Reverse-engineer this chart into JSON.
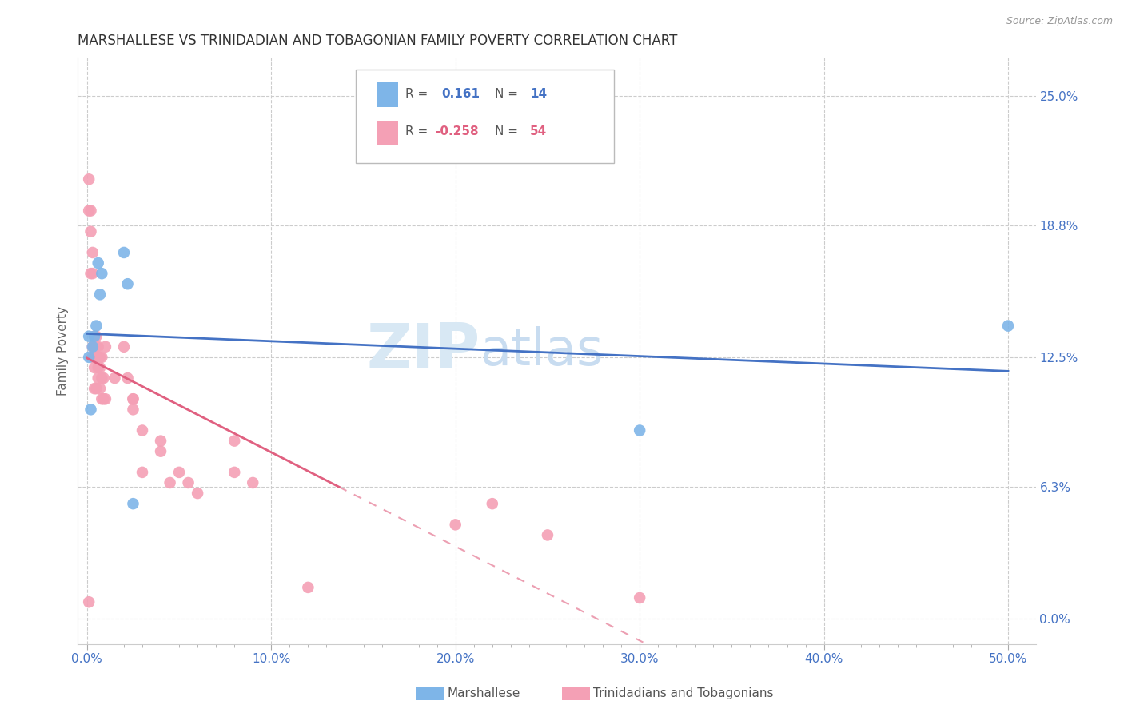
{
  "title": "MARSHALLESE VS TRINIDADIAN AND TOBAGONIAN FAMILY POVERTY CORRELATION CHART",
  "source": "Source: ZipAtlas.com",
  "ylabel": "Family Poverty",
  "xlabel_ticks": [
    "0.0%",
    "",
    "",
    "",
    "",
    "",
    "",
    "",
    "",
    "",
    "10.0%",
    "",
    "",
    "",
    "",
    "",
    "",
    "",
    "",
    "",
    "20.0%",
    "",
    "",
    "",
    "",
    "",
    "",
    "",
    "",
    "",
    "30.0%",
    "",
    "",
    "",
    "",
    "",
    "",
    "",
    "",
    "",
    "40.0%",
    "",
    "",
    "",
    "",
    "",
    "",
    "",
    "",
    "",
    "50.0%"
  ],
  "xlabel_vals": [
    0.0,
    0.01,
    0.02,
    0.03,
    0.04,
    0.05,
    0.06,
    0.07,
    0.08,
    0.09,
    0.1,
    0.11,
    0.12,
    0.13,
    0.14,
    0.15,
    0.16,
    0.17,
    0.18,
    0.19,
    0.2,
    0.21,
    0.22,
    0.23,
    0.24,
    0.25,
    0.26,
    0.27,
    0.28,
    0.29,
    0.3,
    0.31,
    0.32,
    0.33,
    0.34,
    0.35,
    0.36,
    0.37,
    0.38,
    0.39,
    0.4,
    0.41,
    0.42,
    0.43,
    0.44,
    0.45,
    0.46,
    0.47,
    0.48,
    0.49,
    0.5
  ],
  "xlabel_major_ticks": [
    0.0,
    0.1,
    0.2,
    0.3,
    0.4,
    0.5
  ],
  "xlabel_major_labels": [
    "0.0%",
    "10.0%",
    "20.0%",
    "30.0%",
    "40.0%",
    "50.0%"
  ],
  "ylabel_ticks": [
    "0.0%",
    "6.3%",
    "12.5%",
    "18.8%",
    "25.0%"
  ],
  "ylabel_vals": [
    0.0,
    0.063,
    0.125,
    0.188,
    0.25
  ],
  "xlim": [
    -0.005,
    0.515
  ],
  "ylim": [
    -0.012,
    0.268
  ],
  "marshallese_R": "0.161",
  "marshallese_N": "14",
  "trinidadian_R": "-0.258",
  "trinidadian_N": "54",
  "watermark_zip": "ZIP",
  "watermark_atlas": "atlas",
  "blue_color": "#7EB5E8",
  "pink_color": "#F4A0B5",
  "blue_line_color": "#4472C4",
  "pink_line_color": "#E06080",
  "marshallese_x": [
    0.001,
    0.001,
    0.002,
    0.003,
    0.004,
    0.005,
    0.006,
    0.007,
    0.008,
    0.02,
    0.022,
    0.025,
    0.5,
    0.3
  ],
  "marshallese_y": [
    0.135,
    0.125,
    0.1,
    0.13,
    0.135,
    0.14,
    0.17,
    0.155,
    0.165,
    0.175,
    0.16,
    0.055,
    0.14,
    0.09
  ],
  "trinidadian_x": [
    0.001,
    0.001,
    0.002,
    0.002,
    0.002,
    0.003,
    0.003,
    0.003,
    0.003,
    0.004,
    0.004,
    0.004,
    0.004,
    0.004,
    0.005,
    0.005,
    0.005,
    0.005,
    0.006,
    0.006,
    0.006,
    0.007,
    0.007,
    0.007,
    0.008,
    0.008,
    0.008,
    0.009,
    0.009,
    0.01,
    0.01,
    0.015,
    0.02,
    0.022,
    0.025,
    0.025,
    0.025,
    0.03,
    0.03,
    0.04,
    0.04,
    0.045,
    0.05,
    0.055,
    0.06,
    0.08,
    0.08,
    0.09,
    0.25,
    0.2,
    0.22,
    0.12,
    0.3,
    0.001
  ],
  "trinidadian_y": [
    0.21,
    0.195,
    0.195,
    0.185,
    0.165,
    0.175,
    0.165,
    0.13,
    0.125,
    0.135,
    0.13,
    0.125,
    0.12,
    0.11,
    0.135,
    0.13,
    0.125,
    0.11,
    0.13,
    0.12,
    0.115,
    0.125,
    0.12,
    0.11,
    0.125,
    0.115,
    0.105,
    0.115,
    0.105,
    0.13,
    0.105,
    0.115,
    0.13,
    0.115,
    0.105,
    0.1,
    0.105,
    0.07,
    0.09,
    0.085,
    0.08,
    0.065,
    0.07,
    0.065,
    0.06,
    0.085,
    0.07,
    0.065,
    0.04,
    0.045,
    0.055,
    0.015,
    0.01,
    0.008
  ]
}
